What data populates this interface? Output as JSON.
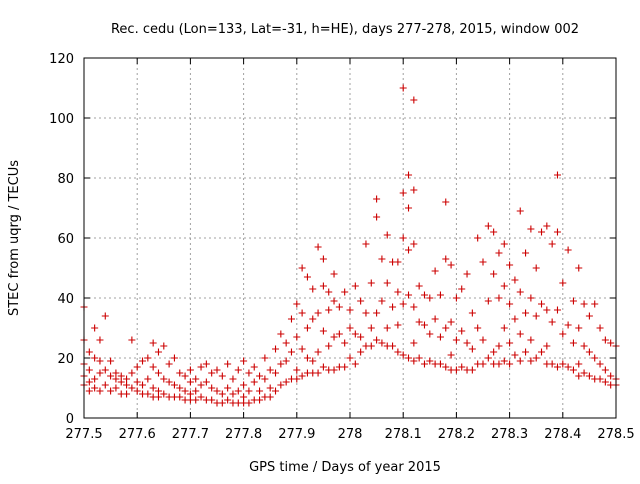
{
  "chart_data": {
    "type": "scatter",
    "title": "Rec. cedu (Lon=133, Lat=-31, h=HE), days 277-278, 2015, window 002",
    "xlabel": "GPS time / Days of year 2015",
    "ylabel": "STEC from uqrg / TECUs",
    "xlim": [
      277.5,
      278.5
    ],
    "ylim": [
      0,
      120
    ],
    "xticks": [
      "277.5",
      "277.6",
      "277.7",
      "277.8",
      "277.9",
      "278",
      "278.1",
      "278.2",
      "278.3",
      "278.4",
      "278.5"
    ],
    "yticks": [
      "0",
      "20",
      "40",
      "60",
      "80",
      "100",
      "120"
    ],
    "grid": true,
    "marker": "+",
    "color": "#cc0000",
    "points": [
      [
        277.5,
        37
      ],
      [
        277.5,
        26
      ],
      [
        277.5,
        18
      ],
      [
        277.5,
        14
      ],
      [
        277.5,
        11
      ],
      [
        277.51,
        22
      ],
      [
        277.51,
        16
      ],
      [
        277.51,
        12
      ],
      [
        277.51,
        9
      ],
      [
        277.52,
        30
      ],
      [
        277.52,
        20
      ],
      [
        277.52,
        13
      ],
      [
        277.52,
        10
      ],
      [
        277.53,
        26
      ],
      [
        277.53,
        19
      ],
      [
        277.53,
        15
      ],
      [
        277.53,
        9
      ],
      [
        277.54,
        34
      ],
      [
        277.54,
        16
      ],
      [
        277.54,
        11
      ],
      [
        277.55,
        19
      ],
      [
        277.55,
        14
      ],
      [
        277.55,
        9
      ],
      [
        277.56,
        15
      ],
      [
        277.56,
        13
      ],
      [
        277.56,
        10
      ],
      [
        277.57,
        14
      ],
      [
        277.57,
        12
      ],
      [
        277.57,
        8
      ],
      [
        277.58,
        13
      ],
      [
        277.58,
        11
      ],
      [
        277.58,
        8
      ],
      [
        277.59,
        26
      ],
      [
        277.59,
        15
      ],
      [
        277.59,
        10
      ],
      [
        277.6,
        17
      ],
      [
        277.6,
        12
      ],
      [
        277.6,
        9
      ],
      [
        277.61,
        19
      ],
      [
        277.61,
        11
      ],
      [
        277.61,
        8
      ],
      [
        277.62,
        20
      ],
      [
        277.62,
        13
      ],
      [
        277.62,
        8
      ],
      [
        277.63,
        25
      ],
      [
        277.63,
        17
      ],
      [
        277.63,
        10
      ],
      [
        277.63,
        7
      ],
      [
        277.64,
        22
      ],
      [
        277.64,
        15
      ],
      [
        277.64,
        9
      ],
      [
        277.64,
        7
      ],
      [
        277.65,
        24
      ],
      [
        277.65,
        13
      ],
      [
        277.65,
        8
      ],
      [
        277.66,
        18
      ],
      [
        277.66,
        12
      ],
      [
        277.66,
        7
      ],
      [
        277.67,
        20
      ],
      [
        277.67,
        11
      ],
      [
        277.67,
        7
      ],
      [
        277.68,
        15
      ],
      [
        277.68,
        10
      ],
      [
        277.68,
        7
      ],
      [
        277.69,
        14
      ],
      [
        277.69,
        9
      ],
      [
        277.69,
        6
      ],
      [
        277.7,
        16
      ],
      [
        277.7,
        12
      ],
      [
        277.7,
        8
      ],
      [
        277.7,
        6
      ],
      [
        277.71,
        13
      ],
      [
        277.71,
        9
      ],
      [
        277.71,
        6
      ],
      [
        277.72,
        17
      ],
      [
        277.72,
        11
      ],
      [
        277.72,
        7
      ],
      [
        277.73,
        18
      ],
      [
        277.73,
        12
      ],
      [
        277.73,
        6
      ],
      [
        277.74,
        15
      ],
      [
        277.74,
        10
      ],
      [
        277.74,
        6
      ],
      [
        277.75,
        16
      ],
      [
        277.75,
        9
      ],
      [
        277.75,
        5
      ],
      [
        277.76,
        14
      ],
      [
        277.76,
        8
      ],
      [
        277.76,
        5
      ],
      [
        277.77,
        18
      ],
      [
        277.77,
        10
      ],
      [
        277.77,
        6
      ],
      [
        277.78,
        13
      ],
      [
        277.78,
        8
      ],
      [
        277.78,
        5
      ],
      [
        277.79,
        16
      ],
      [
        277.79,
        9
      ],
      [
        277.79,
        5
      ],
      [
        277.8,
        19
      ],
      [
        277.8,
        11
      ],
      [
        277.8,
        7
      ],
      [
        277.8,
        5
      ],
      [
        277.81,
        15
      ],
      [
        277.81,
        9
      ],
      [
        277.81,
        5
      ],
      [
        277.82,
        17
      ],
      [
        277.82,
        12
      ],
      [
        277.82,
        6
      ],
      [
        277.83,
        14
      ],
      [
        277.83,
        9
      ],
      [
        277.83,
        6
      ],
      [
        277.84,
        20
      ],
      [
        277.84,
        13
      ],
      [
        277.84,
        7
      ],
      [
        277.85,
        16
      ],
      [
        277.85,
        10
      ],
      [
        277.85,
        7
      ],
      [
        277.86,
        23
      ],
      [
        277.86,
        15
      ],
      [
        277.86,
        9
      ],
      [
        277.87,
        28
      ],
      [
        277.87,
        18
      ],
      [
        277.87,
        11
      ],
      [
        277.88,
        25
      ],
      [
        277.88,
        19
      ],
      [
        277.88,
        12
      ],
      [
        277.89,
        33
      ],
      [
        277.89,
        22
      ],
      [
        277.89,
        13
      ],
      [
        277.9,
        38
      ],
      [
        277.9,
        27
      ],
      [
        277.9,
        16
      ],
      [
        277.9,
        13
      ],
      [
        277.91,
        50
      ],
      [
        277.91,
        35
      ],
      [
        277.91,
        23
      ],
      [
        277.91,
        14
      ],
      [
        277.92,
        47
      ],
      [
        277.92,
        30
      ],
      [
        277.92,
        20
      ],
      [
        277.92,
        15
      ],
      [
        277.93,
        43
      ],
      [
        277.93,
        33
      ],
      [
        277.93,
        19
      ],
      [
        277.93,
        15
      ],
      [
        277.94,
        57
      ],
      [
        277.94,
        35
      ],
      [
        277.94,
        22
      ],
      [
        277.94,
        15
      ],
      [
        277.95,
        53
      ],
      [
        277.95,
        44
      ],
      [
        277.95,
        29
      ],
      [
        277.95,
        17
      ],
      [
        277.96,
        42
      ],
      [
        277.96,
        36
      ],
      [
        277.96,
        24
      ],
      [
        277.96,
        16
      ],
      [
        277.97,
        48
      ],
      [
        277.97,
        39
      ],
      [
        277.97,
        27
      ],
      [
        277.97,
        16
      ],
      [
        277.98,
        37
      ],
      [
        277.98,
        28
      ],
      [
        277.98,
        17
      ],
      [
        277.99,
        42
      ],
      [
        277.99,
        25
      ],
      [
        277.99,
        17
      ],
      [
        278.0,
        36
      ],
      [
        278.0,
        30
      ],
      [
        278.0,
        20
      ],
      [
        278.01,
        44
      ],
      [
        278.01,
        28
      ],
      [
        278.01,
        18
      ],
      [
        278.02,
        39
      ],
      [
        278.02,
        27
      ],
      [
        278.02,
        22
      ],
      [
        278.03,
        58
      ],
      [
        278.03,
        35
      ],
      [
        278.03,
        24
      ],
      [
        278.04,
        45
      ],
      [
        278.04,
        30
      ],
      [
        278.04,
        24
      ],
      [
        278.05,
        73
      ],
      [
        278.05,
        67
      ],
      [
        278.05,
        35
      ],
      [
        278.05,
        26
      ],
      [
        278.06,
        53
      ],
      [
        278.06,
        39
      ],
      [
        278.06,
        25
      ],
      [
        278.07,
        61
      ],
      [
        278.07,
        45
      ],
      [
        278.07,
        30
      ],
      [
        278.07,
        24
      ],
      [
        278.08,
        52
      ],
      [
        278.08,
        37
      ],
      [
        278.08,
        24
      ],
      [
        278.09,
        52
      ],
      [
        278.09,
        42
      ],
      [
        278.09,
        31
      ],
      [
        278.09,
        22
      ],
      [
        278.1,
        110
      ],
      [
        278.1,
        75
      ],
      [
        278.1,
        60
      ],
      [
        278.1,
        38
      ],
      [
        278.1,
        21
      ],
      [
        278.11,
        81
      ],
      [
        278.11,
        70
      ],
      [
        278.11,
        56
      ],
      [
        278.11,
        41
      ],
      [
        278.11,
        20
      ],
      [
        278.12,
        106
      ],
      [
        278.12,
        76
      ],
      [
        278.12,
        58
      ],
      [
        278.12,
        37
      ],
      [
        278.12,
        25
      ],
      [
        278.12,
        19
      ],
      [
        278.13,
        44
      ],
      [
        278.13,
        32
      ],
      [
        278.13,
        20
      ],
      [
        278.14,
        41
      ],
      [
        278.14,
        31
      ],
      [
        278.14,
        18
      ],
      [
        278.15,
        40
      ],
      [
        278.15,
        28
      ],
      [
        278.15,
        19
      ],
      [
        278.16,
        49
      ],
      [
        278.16,
        33
      ],
      [
        278.16,
        18
      ],
      [
        278.17,
        41
      ],
      [
        278.17,
        27
      ],
      [
        278.17,
        18
      ],
      [
        278.18,
        72
      ],
      [
        278.18,
        53
      ],
      [
        278.18,
        30
      ],
      [
        278.18,
        17
      ],
      [
        278.19,
        51
      ],
      [
        278.19,
        32
      ],
      [
        278.19,
        21
      ],
      [
        278.19,
        16
      ],
      [
        278.2,
        40
      ],
      [
        278.2,
        26
      ],
      [
        278.2,
        16
      ],
      [
        278.21,
        43
      ],
      [
        278.21,
        29
      ],
      [
        278.21,
        17
      ],
      [
        278.22,
        48
      ],
      [
        278.22,
        25
      ],
      [
        278.22,
        16
      ],
      [
        278.23,
        35
      ],
      [
        278.23,
        23
      ],
      [
        278.23,
        16
      ],
      [
        278.24,
        60
      ],
      [
        278.24,
        30
      ],
      [
        278.24,
        18
      ],
      [
        278.25,
        52
      ],
      [
        278.25,
        26
      ],
      [
        278.25,
        18
      ],
      [
        278.26,
        64
      ],
      [
        278.26,
        39
      ],
      [
        278.26,
        20
      ],
      [
        278.27,
        62
      ],
      [
        278.27,
        48
      ],
      [
        278.27,
        22
      ],
      [
        278.27,
        18
      ],
      [
        278.28,
        55
      ],
      [
        278.28,
        40
      ],
      [
        278.28,
        24
      ],
      [
        278.28,
        18
      ],
      [
        278.29,
        58
      ],
      [
        278.29,
        44
      ],
      [
        278.29,
        30
      ],
      [
        278.29,
        19
      ],
      [
        278.3,
        51
      ],
      [
        278.3,
        38
      ],
      [
        278.3,
        25
      ],
      [
        278.3,
        18
      ],
      [
        278.31,
        46
      ],
      [
        278.31,
        33
      ],
      [
        278.31,
        21
      ],
      [
        278.32,
        69
      ],
      [
        278.32,
        42
      ],
      [
        278.32,
        28
      ],
      [
        278.32,
        19
      ],
      [
        278.33,
        55
      ],
      [
        278.33,
        35
      ],
      [
        278.33,
        22
      ],
      [
        278.34,
        63
      ],
      [
        278.34,
        40
      ],
      [
        278.34,
        26
      ],
      [
        278.34,
        19
      ],
      [
        278.35,
        50
      ],
      [
        278.35,
        34
      ],
      [
        278.35,
        20
      ],
      [
        278.36,
        62
      ],
      [
        278.36,
        38
      ],
      [
        278.36,
        22
      ],
      [
        278.37,
        64
      ],
      [
        278.37,
        36
      ],
      [
        278.37,
        24
      ],
      [
        278.37,
        18
      ],
      [
        278.38,
        58
      ],
      [
        278.38,
        32
      ],
      [
        278.38,
        18
      ],
      [
        278.39,
        81
      ],
      [
        278.39,
        62
      ],
      [
        278.39,
        36
      ],
      [
        278.39,
        17
      ],
      [
        278.4,
        45
      ],
      [
        278.4,
        28
      ],
      [
        278.4,
        18
      ],
      [
        278.41,
        56
      ],
      [
        278.41,
        31
      ],
      [
        278.41,
        17
      ],
      [
        278.42,
        39
      ],
      [
        278.42,
        25
      ],
      [
        278.42,
        16
      ],
      [
        278.43,
        50
      ],
      [
        278.43,
        30
      ],
      [
        278.43,
        18
      ],
      [
        278.43,
        14
      ],
      [
        278.44,
        38
      ],
      [
        278.44,
        24
      ],
      [
        278.44,
        15
      ],
      [
        278.45,
        34
      ],
      [
        278.45,
        22
      ],
      [
        278.45,
        14
      ],
      [
        278.46,
        38
      ],
      [
        278.46,
        20
      ],
      [
        278.46,
        13
      ],
      [
        278.47,
        30
      ],
      [
        278.47,
        18
      ],
      [
        278.47,
        13
      ],
      [
        278.48,
        26
      ],
      [
        278.48,
        16
      ],
      [
        278.48,
        12
      ],
      [
        278.49,
        25
      ],
      [
        278.49,
        14
      ],
      [
        278.49,
        11
      ],
      [
        278.5,
        24
      ],
      [
        278.5,
        13
      ],
      [
        278.5,
        11
      ]
    ]
  }
}
